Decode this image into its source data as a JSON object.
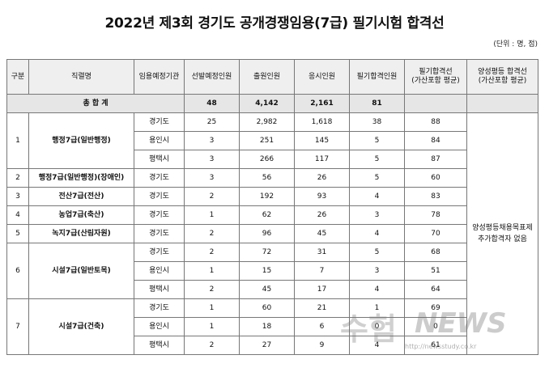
{
  "title": "2022년 제3회 경기도 공개경쟁임용(7급) 필기시험 합격선",
  "unit": "(단위 : 명, 점)",
  "headers": [
    "구분",
    "직렬명",
    "임용예정기관",
    "선발예정인원",
    "출원인원",
    "응시인원",
    "필기합격인원",
    "필기합격선\n(가산포함 평균)",
    "양성평등 합격선\n(가산포함 평균)"
  ],
  "total": {
    "label": "총 합 계",
    "selected": "48",
    "applied": "4,142",
    "took": "2,161",
    "passed": "81"
  },
  "groups": [
    {
      "no": "1",
      "job": "행정7급(일반행정)",
      "rows": [
        {
          "org": "경기도",
          "selected": "25",
          "applied": "2,982",
          "took": "1,618",
          "passed": "38",
          "cutoff": "88"
        },
        {
          "org": "용인시",
          "selected": "3",
          "applied": "251",
          "took": "145",
          "passed": "5",
          "cutoff": "84"
        },
        {
          "org": "평택시",
          "selected": "3",
          "applied": "266",
          "took": "117",
          "passed": "5",
          "cutoff": "87"
        }
      ]
    },
    {
      "no": "2",
      "job": "행정7급(일반행정)(장애인)",
      "rows": [
        {
          "org": "경기도",
          "selected": "3",
          "applied": "56",
          "took": "26",
          "passed": "5",
          "cutoff": "60"
        }
      ]
    },
    {
      "no": "3",
      "job": "전산7급(전산)",
      "rows": [
        {
          "org": "경기도",
          "selected": "2",
          "applied": "192",
          "took": "93",
          "passed": "4",
          "cutoff": "83"
        }
      ]
    },
    {
      "no": "4",
      "job": "농업7급(축산)",
      "rows": [
        {
          "org": "경기도",
          "selected": "1",
          "applied": "62",
          "took": "26",
          "passed": "3",
          "cutoff": "78"
        }
      ]
    },
    {
      "no": "5",
      "job": "녹지7급(산림자원)",
      "rows": [
        {
          "org": "경기도",
          "selected": "2",
          "applied": "96",
          "took": "45",
          "passed": "4",
          "cutoff": "70"
        }
      ]
    },
    {
      "no": "6",
      "job": "시설7급(일반토목)",
      "rows": [
        {
          "org": "경기도",
          "selected": "2",
          "applied": "72",
          "took": "31",
          "passed": "5",
          "cutoff": "68"
        },
        {
          "org": "용인시",
          "selected": "1",
          "applied": "15",
          "took": "7",
          "passed": "3",
          "cutoff": "51"
        },
        {
          "org": "평택시",
          "selected": "2",
          "applied": "45",
          "took": "17",
          "passed": "4",
          "cutoff": "64"
        }
      ]
    },
    {
      "no": "7",
      "job": "시설7급(건축)",
      "rows": [
        {
          "org": "경기도",
          "selected": "1",
          "applied": "60",
          "took": "21",
          "passed": "1",
          "cutoff": "69"
        },
        {
          "org": "용인시",
          "selected": "1",
          "applied": "18",
          "took": "6",
          "passed": "0",
          "cutoff": "0"
        },
        {
          "org": "평택시",
          "selected": "2",
          "applied": "27",
          "took": "9",
          "passed": "4",
          "cutoff": "61"
        }
      ]
    }
  ],
  "gender_note": "양성평등채용목표제\n추가합격자 없음",
  "watermark": {
    "brand_kr": "수험",
    "brand_en": "NEWS",
    "url": "http://newsstudy.co.kr"
  }
}
